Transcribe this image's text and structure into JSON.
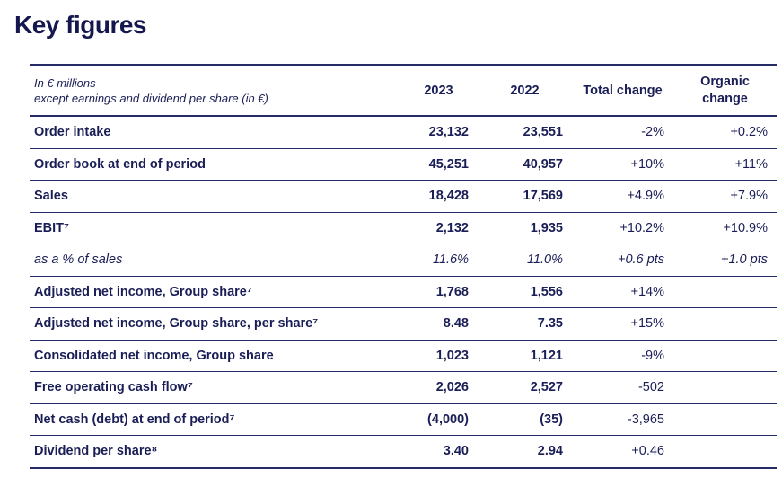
{
  "page": {
    "title": "Key figures",
    "background": "#ffffff"
  },
  "colors": {
    "navy_text": "#1a1e56",
    "title_navy": "#14184e",
    "rule_line": "#252b66"
  },
  "table": {
    "unit_note_line1": "In € millions",
    "unit_note_line2": "except earnings and dividend per share (in €)",
    "columns": [
      "2023",
      "2022",
      "Total change",
      "Organic change"
    ],
    "rows": [
      {
        "label": "Order intake",
        "y2023": "23,132",
        "y2022": "23,551",
        "total_change": "-2%",
        "organic_change": "+0.2%",
        "variant": "default"
      },
      {
        "label": "Order book at end of period",
        "y2023": "45,251",
        "y2022": "40,957",
        "total_change": "+10%",
        "organic_change": "+11%",
        "variant": "default"
      },
      {
        "label": "Sales",
        "y2023": "18,428",
        "y2022": "17,569",
        "total_change": "+4.9%",
        "organic_change": "+7.9%",
        "variant": "default"
      },
      {
        "label": "EBIT⁷",
        "y2023": "2,132",
        "y2022": "1,935",
        "total_change": "+10.2%",
        "organic_change": "+10.9%",
        "variant": "default"
      },
      {
        "label": "as a % of sales",
        "y2023": "11.6%",
        "y2022": "11.0%",
        "total_change": "+0.6 pts",
        "organic_change": "+1.0 pts",
        "variant": "italic"
      },
      {
        "label": "Adjusted net income, Group share⁷",
        "y2023": "1,768",
        "y2022": "1,556",
        "total_change": "+14%",
        "organic_change": "",
        "variant": "default"
      },
      {
        "label": "Adjusted net income, Group share, per share⁷",
        "y2023": "8.48",
        "y2022": "7.35",
        "total_change": "+15%",
        "organic_change": "",
        "variant": "default"
      },
      {
        "label": "Consolidated net income, Group share",
        "y2023": "1,023",
        "y2022": "1,121",
        "total_change": "-9%",
        "organic_change": "",
        "variant": "default"
      },
      {
        "label": "Free operating cash flow⁷",
        "y2023": "2,026",
        "y2022": "2,527",
        "total_change": "-502",
        "organic_change": "",
        "variant": "default"
      },
      {
        "label": "Net cash (debt) at end of period⁷",
        "y2023": "(4,000)",
        "y2022": "(35)",
        "total_change": "-3,965",
        "organic_change": "",
        "variant": "default"
      },
      {
        "label": "Dividend per share⁸",
        "y2023": "3.40",
        "y2022": "2.94",
        "total_change": "+0.46",
        "organic_change": "",
        "variant": "default"
      }
    ]
  }
}
